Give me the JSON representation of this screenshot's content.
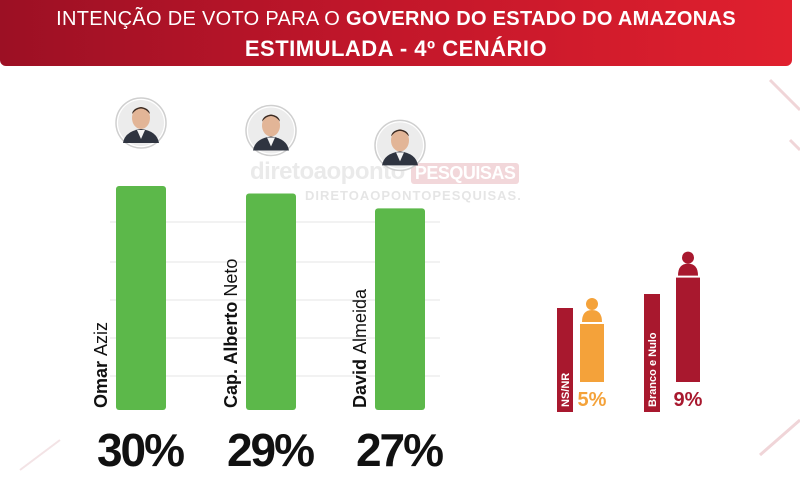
{
  "header": {
    "title_prefix": "INTENÇÃO DE VOTO PARA O ",
    "title_bold": "GOVERNO DO ESTADO DO AMAZONAS",
    "subtitle": "ESTIMULADA - 4º CENÁRIO"
  },
  "watermark": {
    "brand": "diretoaoponto",
    "badge": "PESQUISAS",
    "url": "DIRETOAOPONTOPESQUISAS."
  },
  "colors": {
    "header": "#c0162a",
    "candidate_bar": "#5cb84a",
    "ns_nr": "#f4a23a",
    "branco_nulo": "#a8182e",
    "text": "#111111"
  },
  "chart_data": {
    "type": "bar",
    "title": "ESTIMULADA - 4º CENÁRIO",
    "ylim": [
      0,
      30
    ],
    "grid": true,
    "candidates": [
      {
        "first": "Omar",
        "last": "Aziz",
        "value": 30,
        "label": "30%",
        "icon": "candidate-photo-omar-aziz"
      },
      {
        "first": "Cap. Alberto",
        "last": "Neto",
        "value": 29,
        "label": "29%",
        "icon": "candidate-photo-alberto-neto"
      },
      {
        "first": "David",
        "last": "Almeida",
        "value": 27,
        "label": "27%",
        "icon": "candidate-photo-david-almeida"
      }
    ],
    "others": [
      {
        "name": "NS/NR",
        "value": 5,
        "label": "5%",
        "icon": "person-icon"
      },
      {
        "name": "Branco e Nulo",
        "value": 9,
        "label": "9%",
        "icon": "person-icon"
      }
    ]
  }
}
